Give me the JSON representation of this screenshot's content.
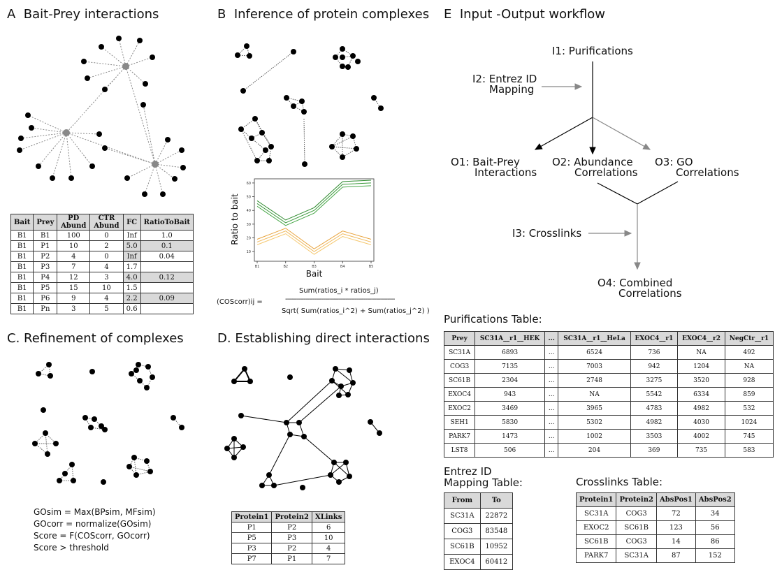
{
  "panels": {
    "a": {
      "letter": "A",
      "title": "Bait-Prey interactions"
    },
    "b": {
      "letter": "B",
      "title": "Inference of protein complexes"
    },
    "c": {
      "letter": "C.",
      "title": "Refinement of complexes"
    },
    "d": {
      "letter": "D.",
      "title": "Establishing direct interactions"
    },
    "e": {
      "letter": "E",
      "title": "Input -Output workflow"
    }
  },
  "table_a": {
    "headers": [
      "Bait",
      "Prey",
      "PD Abund",
      "CTR Abund",
      "FC",
      "RatioToBait"
    ],
    "rows": [
      [
        "B1",
        "B1",
        "100",
        "0",
        "Inf",
        "1.0"
      ],
      [
        "B1",
        "P1",
        "10",
        "2",
        "5.0",
        "0.1"
      ],
      [
        "B1",
        "P2",
        "4",
        "0",
        "Inf",
        "0.04"
      ],
      [
        "B1",
        "P3",
        "7",
        "4",
        "1.7",
        ""
      ],
      [
        "B1",
        "P4",
        "12",
        "3",
        "4.0",
        "0.12"
      ],
      [
        "B1",
        "P5",
        "15",
        "10",
        "1.5",
        ""
      ],
      [
        "B1",
        "P6",
        "9",
        "4",
        "2.2",
        "0.09"
      ],
      [
        "B1",
        "Pn",
        "3",
        "5",
        "0.6",
        ""
      ]
    ]
  },
  "chart_data": {
    "type": "line",
    "categories": [
      "B1",
      "B2",
      "B3",
      "B4",
      "B5"
    ],
    "ylabel": "Ratio to bait",
    "xlabel": "Bait",
    "ylim": [
      0,
      60
    ],
    "yticks": [
      "10",
      "20",
      "30",
      "40",
      "50",
      "60"
    ],
    "series": [
      {
        "color": "#2e8b2e",
        "values": [
          47,
          33,
          42,
          61,
          62
        ]
      },
      {
        "color": "#3a9a3a",
        "values": [
          45,
          31,
          40,
          59,
          60
        ]
      },
      {
        "color": "#4aa84a",
        "values": [
          43,
          29,
          38,
          57,
          58
        ]
      },
      {
        "color": "#e8a23a",
        "values": [
          19,
          27,
          12,
          25,
          19
        ]
      },
      {
        "color": "#f0b85a",
        "values": [
          17,
          25,
          10,
          23,
          17
        ]
      },
      {
        "color": "#f5c870",
        "values": [
          15,
          23,
          8,
          21,
          15
        ]
      }
    ]
  },
  "formula_b": {
    "numerator": "Sum(ratios_i * ratios_j)",
    "lhs": "(COScorr)ij  =",
    "dashes": "------------------------------------------------------------",
    "denominator": "Sqrt( Sum(ratios_i^2) + Sum(ratios_j^2) )"
  },
  "go_text": [
    "GOsim = Max(BPsim, MFsim)",
    "GOcorr = normalize(GOsim)",
    "Score = F(COScorr, GOcorr)",
    "Score > threshold"
  ],
  "table_d": {
    "headers": [
      "Protein1",
      "Protein2",
      "XLinks"
    ],
    "rows": [
      [
        "P1",
        "P2",
        "6"
      ],
      [
        "P5",
        "P3",
        "10"
      ],
      [
        "P3",
        "P2",
        "4"
      ],
      [
        "P7",
        "P1",
        "7"
      ]
    ]
  },
  "workflow": {
    "i1": "I1: Purifications",
    "i2": [
      "I2: Entrez ID",
      "Mapping"
    ],
    "o1": [
      "O1: Bait-Prey",
      "Interactions"
    ],
    "o2": [
      "O2: Abundance",
      "Correlations"
    ],
    "o3": [
      "O3: GO",
      "Correlations"
    ],
    "i3": "I3: Crosslinks",
    "o4": [
      "O4: Combined",
      "Correlations"
    ]
  },
  "purifications": {
    "title": "Purifications Table:",
    "headers": [
      "Prey",
      "SC31A__r1__HEK",
      "...",
      "SC31A__r1__HeLa",
      "EXOC4__r1",
      "EXOC4__r2",
      "NegCtr__r1"
    ],
    "rows": [
      [
        "SC31A",
        "6893",
        "...",
        "6524",
        "736",
        "NA",
        "492"
      ],
      [
        "COG3",
        "7135",
        "...",
        "7003",
        "942",
        "1204",
        "NA"
      ],
      [
        "SC61B",
        "2304",
        "...",
        "2748",
        "3275",
        "3520",
        "928"
      ],
      [
        "EXOC4",
        "943",
        "...",
        "NA",
        "5542",
        "6334",
        "859"
      ],
      [
        "EXOC2",
        "3469",
        "...",
        "3965",
        "4783",
        "4982",
        "532"
      ],
      [
        "SEH1",
        "5830",
        "...",
        "5302",
        "4982",
        "4030",
        "1024"
      ],
      [
        "PARK7",
        "1473",
        "...",
        "1002",
        "3503",
        "4002",
        "745"
      ],
      [
        "LST8",
        "506",
        "...",
        "204",
        "369",
        "735",
        "583"
      ]
    ]
  },
  "entrez": {
    "title": [
      "Entrez ID",
      "Mapping Table:"
    ],
    "headers": [
      "From",
      "To"
    ],
    "rows": [
      [
        "SC31A",
        "22872"
      ],
      [
        "COG3",
        "83548"
      ],
      [
        "SC61B",
        "10952"
      ],
      [
        "EXOC4",
        "60412"
      ]
    ]
  },
  "crosslinks": {
    "title": "Crosslinks Table:",
    "headers": [
      "Protein1",
      "Protein2",
      "AbsPos1",
      "AbsPos2"
    ],
    "rows": [
      [
        "SC31A",
        "COG3",
        "72",
        "34"
      ],
      [
        "EXOC2",
        "SC61B",
        "123",
        "56"
      ],
      [
        "SC61B",
        "COG3",
        "14",
        "86"
      ],
      [
        "PARK7",
        "SC31A",
        "87",
        "152"
      ]
    ]
  }
}
